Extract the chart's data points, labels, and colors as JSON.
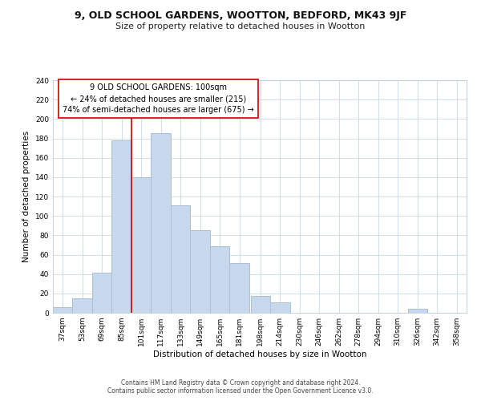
{
  "title": "9, OLD SCHOOL GARDENS, WOOTTON, BEDFORD, MK43 9JF",
  "subtitle": "Size of property relative to detached houses in Wootton",
  "xlabel": "Distribution of detached houses by size in Wootton",
  "ylabel": "Number of detached properties",
  "footer_line1": "Contains HM Land Registry data © Crown copyright and database right 2024.",
  "footer_line2": "Contains public sector information licensed under the Open Government Licence v3.0.",
  "bin_labels": [
    "37sqm",
    "53sqm",
    "69sqm",
    "85sqm",
    "101sqm",
    "117sqm",
    "133sqm",
    "149sqm",
    "165sqm",
    "181sqm",
    "198sqm",
    "214sqm",
    "230sqm",
    "246sqm",
    "262sqm",
    "278sqm",
    "294sqm",
    "310sqm",
    "326sqm",
    "342sqm",
    "358sqm"
  ],
  "bin_edges": [
    37,
    53,
    69,
    85,
    101,
    117,
    133,
    149,
    165,
    181,
    198,
    214,
    230,
    246,
    262,
    278,
    294,
    310,
    326,
    342,
    358
  ],
  "bar_heights": [
    6,
    15,
    41,
    178,
    140,
    185,
    111,
    85,
    69,
    51,
    17,
    11,
    0,
    0,
    0,
    0,
    0,
    0,
    4,
    0,
    0
  ],
  "bar_color": "#c8d8ec",
  "bar_edge_color": "#a8c0d8",
  "grid_color": "#d0dce8",
  "vline_x": 101,
  "vline_color": "#cc0000",
  "annotation_text": "9 OLD SCHOOL GARDENS: 100sqm\n← 24% of detached houses are smaller (215)\n74% of semi-detached houses are larger (675) →",
  "annotation_box_color": "#ffffff",
  "annotation_box_edge": "#cc0000",
  "ylim": [
    0,
    240
  ],
  "yticks": [
    0,
    20,
    40,
    60,
    80,
    100,
    120,
    140,
    160,
    180,
    200,
    220,
    240
  ],
  "background_color": "#ffffff",
  "title_fontsize": 9,
  "subtitle_fontsize": 8,
  "axis_label_fontsize": 7.5,
  "tick_fontsize": 6.5,
  "annotation_fontsize": 7,
  "footer_fontsize": 5.5
}
